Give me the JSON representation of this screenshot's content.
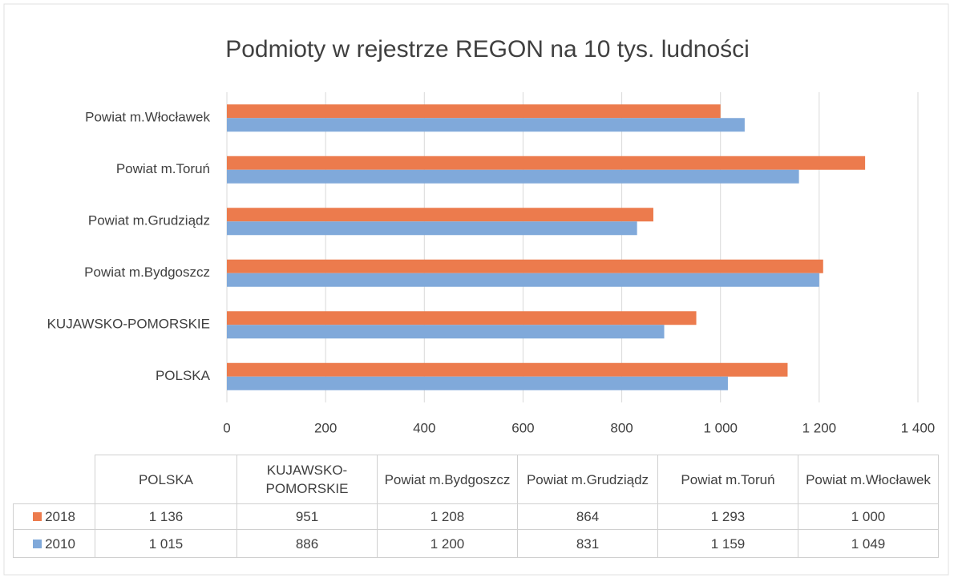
{
  "chart_data": {
    "type": "bar",
    "orientation": "horizontal",
    "title": "Podmioty w rejestrze REGON na 10 tys. ludności",
    "categories": [
      "POLSKA",
      "KUJAWSKO-POMORSKIE",
      "Powiat m.Bydgoszcz",
      "Powiat m.Grudziądz",
      "Powiat m.Toruń",
      "Powiat m.Włocławek"
    ],
    "series": [
      {
        "name": "2018",
        "color": "#ec7b4d",
        "values": [
          1136,
          951,
          1208,
          864,
          1293,
          1000
        ],
        "value_labels": [
          "1 136",
          "951",
          "1 208",
          "864",
          "1 293",
          "1 000"
        ]
      },
      {
        "name": "2010",
        "color": "#80a9da",
        "values": [
          1015,
          886,
          1200,
          831,
          1159,
          1049
        ],
        "value_labels": [
          "1 015",
          "886",
          "1 200",
          "831",
          "1 159",
          "1 049"
        ]
      }
    ],
    "xlim": [
      0,
      1400
    ],
    "xticks": [
      0,
      200,
      400,
      600,
      800,
      {
        "value": 1000,
        "label": "1 000"
      },
      {
        "value": 1200,
        "label": "1 200"
      },
      {
        "value": 1400,
        "label": "1 400"
      }
    ],
    "grid": true,
    "data_table": true
  }
}
